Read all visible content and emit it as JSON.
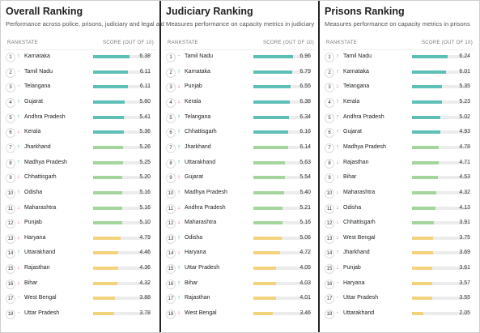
{
  "score_max": 10,
  "panels": [
    {
      "title": "Overall Ranking",
      "subtitle": "Performance across police, prisons, judiciary and legal aid",
      "headers": [
        "RANK",
        "STATE",
        "SCORE (OUT OF 10)"
      ],
      "rows": [
        [
          1,
          "↑",
          "Karnataka",
          "6.38",
          "#5dbfb6",
          "#2e9e5b"
        ],
        [
          2,
          "-",
          "Tamil Nadu",
          "6.11",
          "#5dbfb6",
          "#888888"
        ],
        [
          3,
          "-",
          "Telangana",
          "6.11",
          "#5dbfb6",
          "#888888"
        ],
        [
          4,
          "↑",
          "Gujarat",
          "5.60",
          "#5dbfb6",
          "#2e9e5b"
        ],
        [
          5,
          "↑",
          "Andhra Pradesh",
          "5.41",
          "#5dbfb6",
          "#2e9e5b"
        ],
        [
          6,
          "↓",
          "Kerala",
          "5.36",
          "#5dbfb6",
          "#d9534f"
        ],
        [
          7,
          "↑",
          "Jharkhand",
          "5.26",
          "#a3d59c",
          "#2e9e5b"
        ],
        [
          8,
          "↑",
          "Madhya Pradesh",
          "5.25",
          "#a3d59c",
          "#2e9e5b"
        ],
        [
          9,
          "↓",
          "Chhattisgarh",
          "5.20",
          "#a3d59c",
          "#d9534f"
        ],
        [
          10,
          "↑",
          "Odisha",
          "5.16",
          "#a3d59c",
          "#2e9e5b"
        ],
        [
          11,
          "↓",
          "Maharashtra",
          "5.16",
          "#a3d59c",
          "#d9534f"
        ],
        [
          12,
          "↓",
          "Punjab",
          "5.10",
          "#a3d59c",
          "#d9534f"
        ],
        [
          13,
          "↓",
          "Haryana",
          "4.79",
          "#f2d27b",
          "#d9534f"
        ],
        [
          14,
          "↑",
          "Uttarakhand",
          "4.46",
          "#f2d27b",
          "#2e9e5b"
        ],
        [
          15,
          "↓",
          "Rajasthan",
          "4.36",
          "#f2d27b",
          "#d9534f"
        ],
        [
          16,
          "↓",
          "Bihar",
          "4.32",
          "#f2d27b",
          "#d9534f"
        ],
        [
          17,
          "-",
          "West Bengal",
          "3.88",
          "#f2d27b",
          "#888888"
        ],
        [
          18,
          "-",
          "Uttar Pradesh",
          "3.78",
          "#f2d27b",
          "#888888"
        ]
      ]
    },
    {
      "title": "Judiciary Ranking",
      "subtitle": "Measures performance on capacity metrics in judiciary",
      "headers": [
        "RANK",
        "STATE",
        "SCORE (OUT OF 10)"
      ],
      "rows": [
        [
          1,
          "-",
          "Tamil Nadu",
          "6.96",
          "#5dbfb6",
          "#888888"
        ],
        [
          2,
          "↑",
          "Karnataka",
          "6.79",
          "#5dbfb6",
          "#2e9e5b"
        ],
        [
          3,
          "↓",
          "Punjab",
          "6.55",
          "#5dbfb6",
          "#d9534f"
        ],
        [
          4,
          "↓",
          "Kerala",
          "6.38",
          "#5dbfb6",
          "#d9534f"
        ],
        [
          5,
          "↑",
          "Telangana",
          "6.34",
          "#5dbfb6",
          "#2e9e5b"
        ],
        [
          6,
          "↑",
          "Chhattisgarh",
          "6.16",
          "#5dbfb6",
          "#2e9e5b"
        ],
        [
          7,
          "↑",
          "Jharkhand",
          "6.14",
          "#a3d59c",
          "#2e9e5b"
        ],
        [
          8,
          "↑",
          "Uttarakhand",
          "5.63",
          "#a3d59c",
          "#2e9e5b"
        ],
        [
          9,
          "↓",
          "Gujarat",
          "5.54",
          "#a3d59c",
          "#d9534f"
        ],
        [
          10,
          "↑",
          "Madhya Pradesh",
          "5.40",
          "#a3d59c",
          "#2e9e5b"
        ],
        [
          11,
          "↓",
          "Andhra Pradesh",
          "5.21",
          "#a3d59c",
          "#d9534f"
        ],
        [
          12,
          "↓",
          "Maharashtra",
          "5.16",
          "#a3d59c",
          "#d9534f"
        ],
        [
          13,
          "↑",
          "Odisha",
          "5.06",
          "#f2d27b",
          "#2e9e5b"
        ],
        [
          14,
          "↓",
          "Haryana",
          "4.72",
          "#f2d27b",
          "#d9534f"
        ],
        [
          15,
          "↑",
          "Uttar Pradesh",
          "4.05",
          "#f2d27b",
          "#2e9e5b"
        ],
        [
          16,
          "↑",
          "Bihar",
          "4.03",
          "#f2d27b",
          "#2e9e5b"
        ],
        [
          17,
          "↑",
          "Rajasthan",
          "4.01",
          "#f2d27b",
          "#2e9e5b"
        ],
        [
          18,
          "↓",
          "West Bengal",
          "3.46",
          "#f2d27b",
          "#d9534f"
        ]
      ]
    },
    {
      "title": "Prisons Ranking",
      "subtitle": "Measures performance on capacity metrics in prisons",
      "headers": [
        "RANK",
        "STATE",
        "SCORE (OUT OF 10)"
      ],
      "rows": [
        [
          1,
          "↑",
          "Tamil Nadu",
          "6.24",
          "#5dbfb6",
          "#2e9e5b"
        ],
        [
          2,
          "↑",
          "Karnataka",
          "6.01",
          "#5dbfb6",
          "#2e9e5b"
        ],
        [
          3,
          "↓",
          "Telangana",
          "5.35",
          "#5dbfb6",
          "#d9534f"
        ],
        [
          4,
          "↑",
          "Kerala",
          "5.23",
          "#5dbfb6",
          "#2e9e5b"
        ],
        [
          5,
          "↑",
          "Andhra Pradesh",
          "5.02",
          "#5dbfb6",
          "#2e9e5b"
        ],
        [
          6,
          "↑",
          "Gujarat",
          "4.93",
          "#5dbfb6",
          "#2e9e5b"
        ],
        [
          7,
          "↑",
          "Madhya Pradesh",
          "4.78",
          "#a3d59c",
          "#2e9e5b"
        ],
        [
          8,
          "↓",
          "Rajasthan",
          "4.71",
          "#a3d59c",
          "#d9534f"
        ],
        [
          9,
          "↓",
          "Bihar",
          "4.53",
          "#a3d59c",
          "#d9534f"
        ],
        [
          10,
          "↓",
          "Maharashtra",
          "4.32",
          "#a3d59c",
          "#d9534f"
        ],
        [
          11,
          "↓",
          "Odisha",
          "4.13",
          "#a3d59c",
          "#d9534f"
        ],
        [
          12,
          "↓",
          "Chhattisgarh",
          "3.91",
          "#a3d59c",
          "#d9534f"
        ],
        [
          13,
          "↓",
          "West Bengal",
          "3.75",
          "#f2d27b",
          "#d9534f"
        ],
        [
          14,
          "↑",
          "Jharkhand",
          "3.69",
          "#f2d27b",
          "#2e9e5b"
        ],
        [
          15,
          "↓",
          "Punjab",
          "3.61",
          "#f2d27b",
          "#d9534f"
        ],
        [
          16,
          "-",
          "Haryana",
          "3.57",
          "#f2d27b",
          "#888888"
        ],
        [
          17,
          "-",
          "Uttar Pradesh",
          "3.55",
          "#f2d27b",
          "#888888"
        ],
        [
          18,
          "-",
          "Uttarakhand",
          "2.05",
          "#f2d27b",
          "#888888"
        ]
      ]
    }
  ]
}
